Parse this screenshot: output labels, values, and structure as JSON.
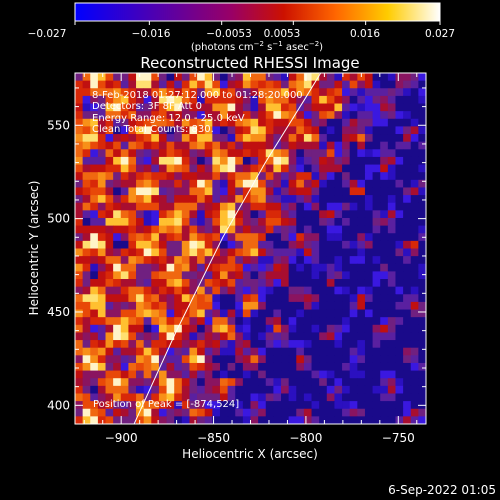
{
  "colorbar": {
    "tick_labels": [
      "−0.027",
      "−0.016",
      "−0.0053",
      "0.0053",
      "0.016",
      "0.027"
    ],
    "tick_values": [
      -0.027,
      -0.016,
      -0.0053,
      0.0053,
      0.016,
      0.027
    ],
    "range": [
      -0.027,
      0.027
    ],
    "units_prefix": "(photons cm",
    "units_exp1": "−2",
    "units_mid1": " s",
    "units_exp2": "−1",
    "units_mid2": " asec",
    "units_exp3": "−2",
    "units_suffix": ")",
    "colors": [
      "#0000ff",
      "#3300cc",
      "#660099",
      "#990066",
      "#cc1100",
      "#ff6600",
      "#ffcc00",
      "#ffffff"
    ]
  },
  "plot": {
    "title": "Reconstructed RHESSI Image",
    "info_line1": "8-Feb-2018 01:27:12.000 to 01:28:20.000",
    "info_line2": "Detectors: 3F 8F  Att 0",
    "info_line3": "Energy Range: 12.0 - 25.0 keV",
    "info_line4": "Clean    Total Counts: 830.",
    "peak_label": "Position of Peak = [-874,524]",
    "x_axis_label": "Heliocentric X (arcsec)",
    "y_axis_label": "Heliocentric Y (arcsec)",
    "x_tick_labels": [
      "−900",
      "−850",
      "−800",
      "−750"
    ],
    "x_ticks": [
      -900,
      -850,
      -800,
      -750
    ],
    "y_tick_labels": [
      "400",
      "450",
      "500",
      "550"
    ],
    "y_ticks": [
      400,
      450,
      500,
      550
    ],
    "xlim": [
      -925,
      -735
    ],
    "ylim": [
      390,
      578
    ],
    "limb_curve": [
      [
        -893,
        390
      ],
      [
        -870,
        440
      ],
      [
        -845,
        490
      ],
      [
        -822,
        530
      ],
      [
        -800,
        565
      ],
      [
        -792,
        578
      ]
    ],
    "peak_position": [
      -874,
      524
    ]
  },
  "footer": {
    "date": "6-Sep-2022 01:05"
  }
}
